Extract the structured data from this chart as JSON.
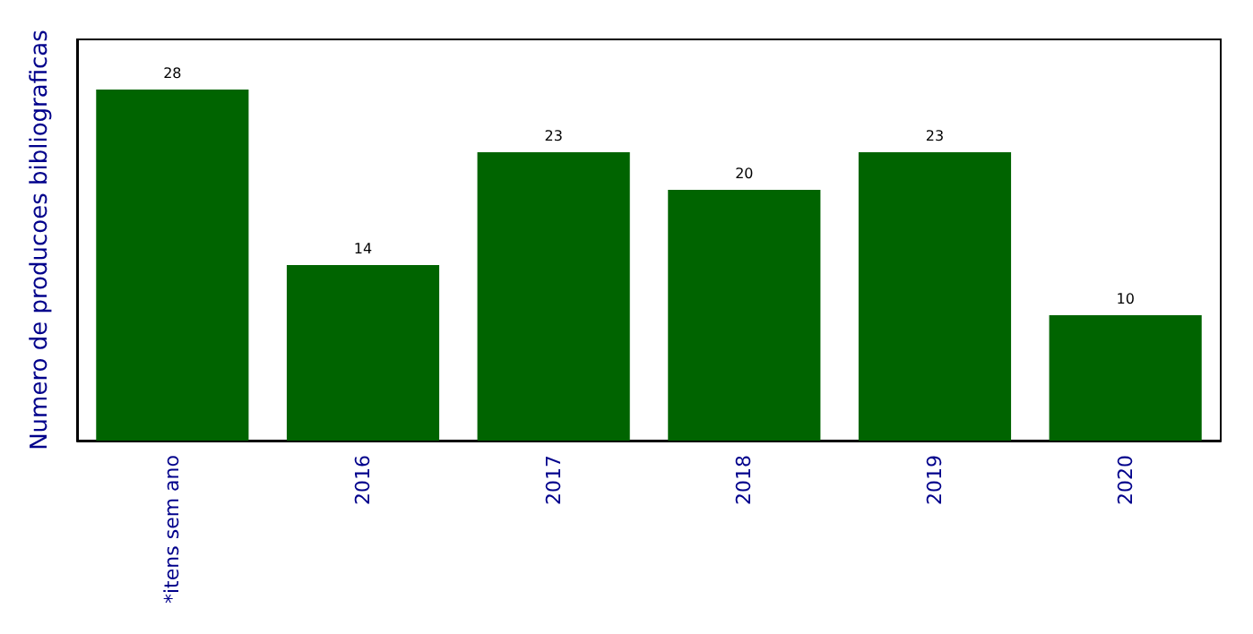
{
  "chart_data": {
    "type": "bar",
    "ylabel": "Numero de producoes bibliograficas",
    "categories": [
      "*itens sem ano",
      "2016",
      "2017",
      "2018",
      "2019",
      "2020"
    ],
    "values": [
      28,
      14,
      23,
      20,
      23,
      10
    ],
    "color": "#006400",
    "ylim": [
      0,
      32
    ],
    "tick_labels": "x",
    "data_labels": true
  }
}
